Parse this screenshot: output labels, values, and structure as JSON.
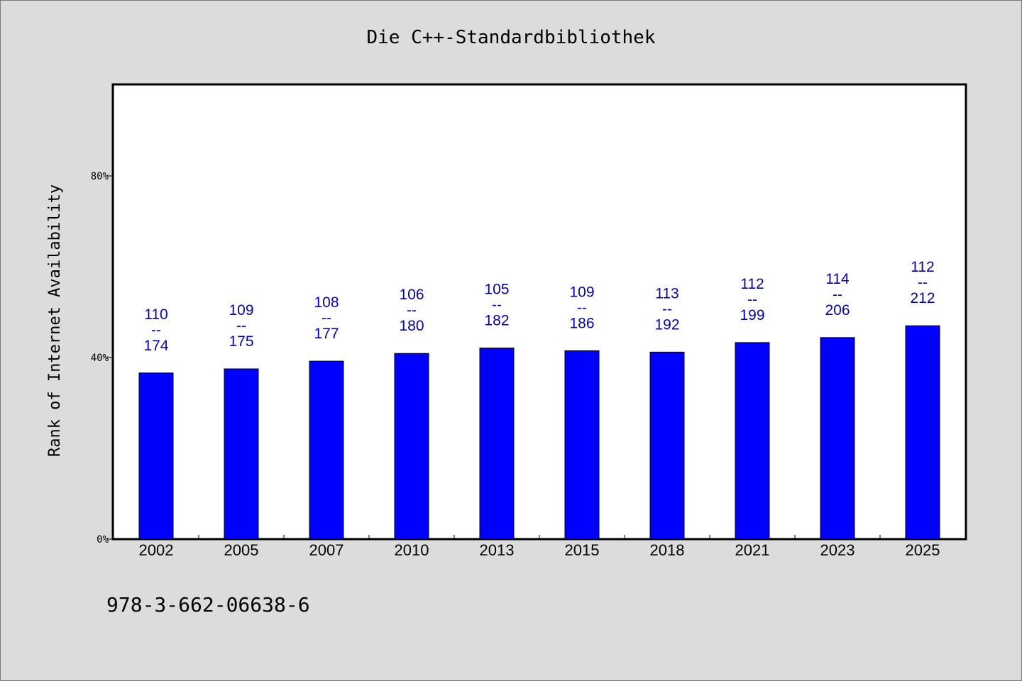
{
  "chart_data": {
    "type": "bar",
    "title": "Die C++-Standardbibliothek",
    "ylabel": "Rank of Internet Availability",
    "xlabel": "",
    "categories": [
      "2002",
      "2005",
      "2007",
      "2010",
      "2013",
      "2015",
      "2018",
      "2021",
      "2023",
      "2025"
    ],
    "values": [
      36.6,
      37.5,
      39.2,
      40.9,
      42.1,
      41.5,
      41.2,
      43.3,
      44.4,
      47.0
    ],
    "data_labels": [
      {
        "top": "110",
        "sep": "--",
        "bottom": "174"
      },
      {
        "top": "109",
        "sep": "--",
        "bottom": "175"
      },
      {
        "top": "108",
        "sep": "--",
        "bottom": "177"
      },
      {
        "top": "106",
        "sep": "--",
        "bottom": "180"
      },
      {
        "top": "105",
        "sep": "--",
        "bottom": "182"
      },
      {
        "top": "109",
        "sep": "--",
        "bottom": "186"
      },
      {
        "top": "113",
        "sep": "--",
        "bottom": "192"
      },
      {
        "top": "112",
        "sep": "--",
        "bottom": "199"
      },
      {
        "top": "114",
        "sep": "--",
        "bottom": "206"
      },
      {
        "top": "112",
        "sep": "--",
        "bottom": "212"
      }
    ],
    "ylim": [
      0,
      100
    ],
    "yticks": [
      0,
      40,
      80
    ],
    "ytick_labels": [
      "0%",
      "40%",
      "80%"
    ],
    "grid": false,
    "bar_color": "#0000ff",
    "label_color": "#0000cc",
    "footer": "978-3-662-06638-6"
  }
}
